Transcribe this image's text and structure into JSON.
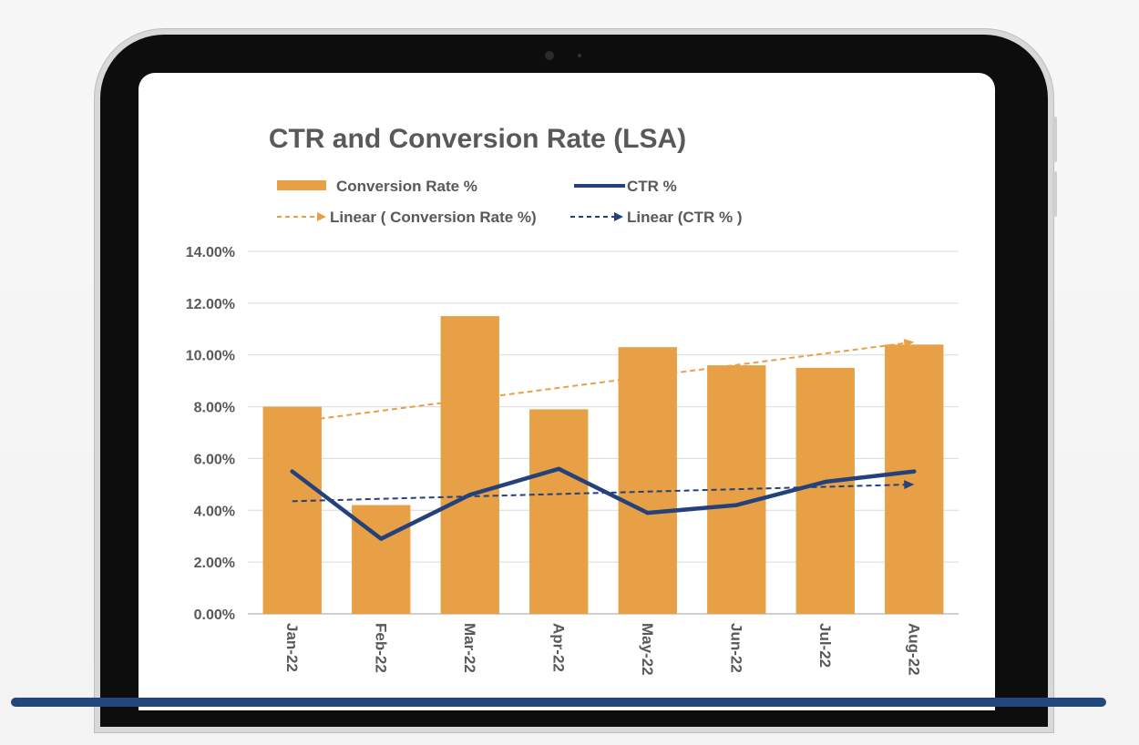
{
  "chart_data": {
    "type": "bar",
    "title": "CTR and Conversion Rate (LSA)",
    "categories": [
      "Jan-22",
      "Feb-22",
      "Mar-22",
      "Apr-22",
      "May-22",
      "Jun-22",
      "Jul-22",
      "Aug-22"
    ],
    "series": [
      {
        "name": "Conversion Rate %",
        "kind": "bar",
        "color": "#e8a046",
        "values": [
          8.0,
          4.2,
          11.5,
          7.9,
          10.3,
          9.6,
          9.5,
          10.4
        ]
      },
      {
        "name": "CTR %",
        "kind": "line",
        "color": "#23417a",
        "values": [
          5.5,
          2.9,
          4.6,
          5.6,
          3.9,
          4.2,
          5.1,
          5.5
        ]
      }
    ],
    "trendlines": [
      {
        "name": "Linear ( Conversion Rate %)",
        "color": "#e8a046",
        "start": 7.4,
        "end": 10.5
      },
      {
        "name": "Linear (CTR % )",
        "color": "#23417a",
        "start": 4.35,
        "end": 5.0
      }
    ],
    "yticks": [
      "0.00%",
      "2.00%",
      "4.00%",
      "6.00%",
      "8.00%",
      "10.00%",
      "12.00%",
      "14.00%"
    ],
    "ylim": [
      0,
      14
    ],
    "xlabel": "",
    "ylabel": "",
    "grid": true
  }
}
